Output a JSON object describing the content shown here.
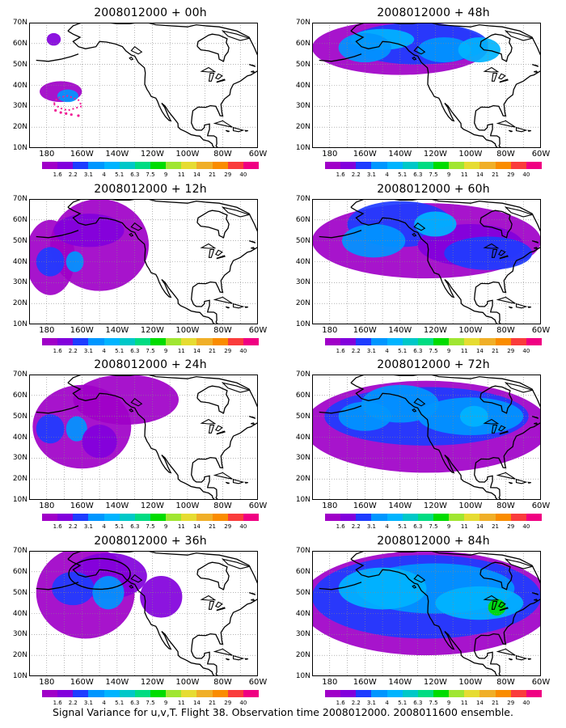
{
  "panels": [
    {
      "title": "2008012000 + 00h"
    },
    {
      "title": "2008012000 + 48h"
    },
    {
      "title": "2008012000 + 12h"
    },
    {
      "title": "2008012000 + 60h"
    },
    {
      "title": "2008012000 + 24h"
    },
    {
      "title": "2008012000 + 72h"
    },
    {
      "title": "2008012000 + 36h"
    },
    {
      "title": "2008012000 + 84h"
    }
  ],
  "lat_labels": [
    "70N",
    "60N",
    "50N",
    "40N",
    "30N",
    "20N",
    "10N"
  ],
  "lon_labels": [
    "180",
    "160W",
    "140W",
    "120W",
    "100W",
    "80W",
    "60W"
  ],
  "colorbar": {
    "colors": [
      "#a000c8",
      "#8200dc",
      "#1e3cff",
      "#0096ff",
      "#00b4ff",
      "#00c8c8",
      "#00dc82",
      "#00dc00",
      "#a0e632",
      "#e6dc32",
      "#f0af28",
      "#fa8c00",
      "#fa3c3c",
      "#f00082"
    ],
    "labels": [
      "1.6",
      "2.2",
      "3.1",
      "4",
      "5.1",
      "6.3",
      "7.5",
      "9",
      "11",
      "14",
      "21",
      "29",
      "40"
    ]
  },
  "footer": "Signal Variance for u,v,T. Flight 38. Observation time 2008012000. 2008011600 ensemble."
}
